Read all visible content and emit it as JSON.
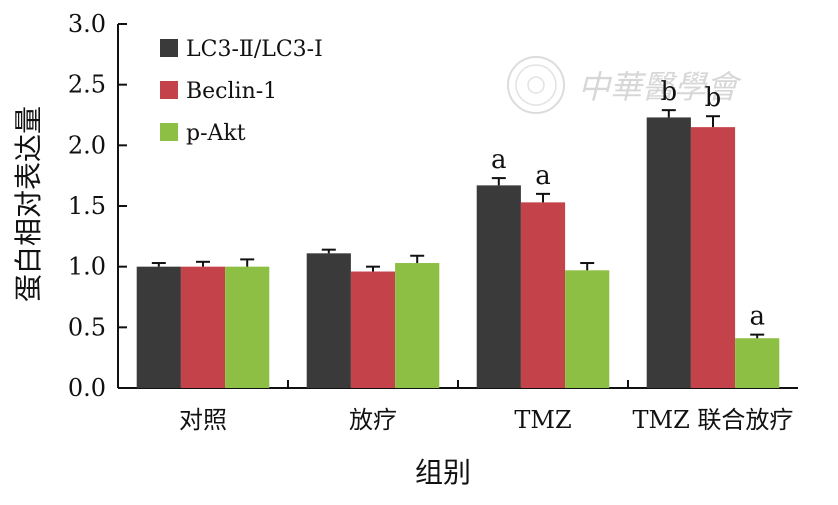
{
  "chart_data": {
    "type": "bar",
    "title": "",
    "xlabel": "组别",
    "ylabel": "蛋白相对表达量",
    "ylim": [
      0,
      3.0
    ],
    "yticks": [
      "0.0",
      "0.5",
      "1.0",
      "1.5",
      "2.0",
      "2.5",
      "3.0"
    ],
    "categories": [
      "对照",
      "放疗",
      "TMZ",
      "TMZ 联合放疗"
    ],
    "series": [
      {
        "name": "LC3-Ⅱ/LC3-Ⅰ",
        "color": "#3a3a3a",
        "values": [
          1.0,
          1.11,
          1.67,
          2.23
        ],
        "errors": [
          0.03,
          0.03,
          0.06,
          0.06
        ],
        "labels": [
          "",
          "",
          "a",
          "b"
        ]
      },
      {
        "name": "Beclin-1",
        "color": "#c4424a",
        "values": [
          1.0,
          0.96,
          1.53,
          2.15
        ],
        "errors": [
          0.04,
          0.04,
          0.07,
          0.09
        ],
        "labels": [
          "",
          "",
          "a",
          "b"
        ]
      },
      {
        "name": "p-Akt",
        "color": "#8dbf44",
        "values": [
          1.0,
          1.03,
          0.97,
          0.41
        ],
        "errors": [
          0.06,
          0.06,
          0.06,
          0.03
        ],
        "labels": [
          "",
          "",
          "",
          "a"
        ]
      }
    ],
    "grid": false,
    "legend_position": "top-left"
  },
  "watermark": {
    "text": "中華醫學會"
  }
}
